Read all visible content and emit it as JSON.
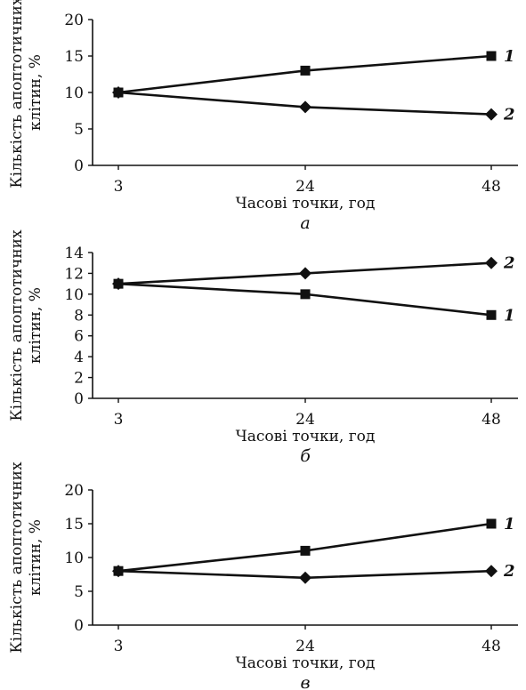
{
  "chart_data": [
    {
      "type": "line",
      "panel_label": "а",
      "xlabel": "Часові точки, год",
      "ylabel": [
        "Кількість апоптотичних",
        "клітин, %"
      ],
      "categories": [
        "3",
        "24",
        "48"
      ],
      "ylim": [
        0,
        20
      ],
      "yticks": [
        0,
        5,
        10,
        15,
        20
      ],
      "grid": false,
      "series": [
        {
          "name": "1",
          "marker": "square",
          "values": [
            10,
            13,
            15
          ]
        },
        {
          "name": "2",
          "marker": "diamond",
          "values": [
            10,
            8,
            7
          ]
        }
      ]
    },
    {
      "type": "line",
      "panel_label": "б",
      "xlabel": "Часові точки, год",
      "ylabel": [
        "Кількість апоптотичних",
        "клітин, %"
      ],
      "categories": [
        "3",
        "24",
        "48"
      ],
      "ylim": [
        0,
        14
      ],
      "yticks": [
        0,
        2,
        4,
        6,
        8,
        10,
        12,
        14
      ],
      "grid": false,
      "series": [
        {
          "name": "1",
          "marker": "square",
          "values": [
            11,
            10,
            8
          ]
        },
        {
          "name": "2",
          "marker": "diamond",
          "values": [
            11,
            12,
            13
          ]
        }
      ]
    },
    {
      "type": "line",
      "panel_label": "в",
      "xlabel": "Часові точки, год",
      "ylabel": [
        "Кількість апоптотичних",
        "клітин, %"
      ],
      "categories": [
        "3",
        "24",
        "48"
      ],
      "ylim": [
        0,
        20
      ],
      "yticks": [
        0,
        5,
        10,
        15,
        20
      ],
      "grid": false,
      "series": [
        {
          "name": "1",
          "marker": "square",
          "values": [
            8,
            11,
            15
          ]
        },
        {
          "name": "2",
          "marker": "diamond",
          "values": [
            8,
            7,
            8
          ]
        }
      ]
    }
  ]
}
